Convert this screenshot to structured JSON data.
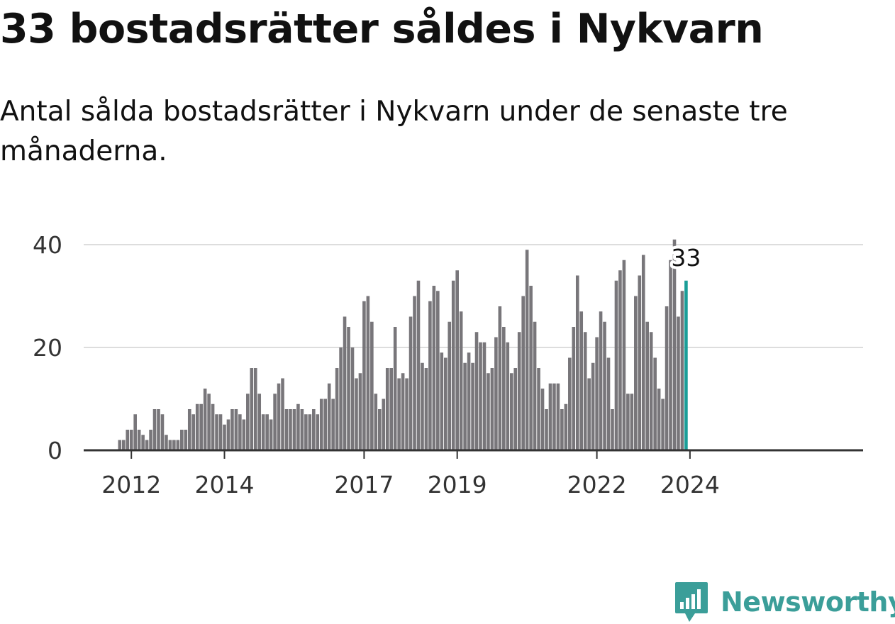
{
  "header": {
    "title": "33 bostadsrätter såldes i Nykvarn",
    "subtitle": "Antal sålda bostadsrätter i Nykvarn under de senaste tre månaderna."
  },
  "brand": {
    "name": "Newsworthy",
    "color": "#3b9e99",
    "icon": "newsworthy-logo-icon"
  },
  "chart_data": {
    "type": "bar",
    "x_start": "2011-10",
    "x_interval": "month",
    "x_tick_labels": [
      "2012",
      "2014",
      "2017",
      "2019",
      "2022",
      "2024"
    ],
    "y_ticks": [
      0,
      20,
      40
    ],
    "ylim": [
      0,
      40
    ],
    "grid": true,
    "colors": {
      "bars": "#78767a",
      "highlight": "#1a9e98",
      "grid": "#dddddd",
      "axis": "#333333"
    },
    "highlight_label": "33",
    "values": [
      2,
      2,
      4,
      4,
      7,
      4,
      3,
      2,
      4,
      8,
      8,
      7,
      3,
      2,
      2,
      2,
      4,
      4,
      8,
      7,
      9,
      9,
      12,
      11,
      9,
      7,
      7,
      5,
      6,
      8,
      8,
      7,
      6,
      11,
      16,
      16,
      11,
      7,
      7,
      6,
      11,
      13,
      14,
      8,
      8,
      8,
      9,
      8,
      7,
      7,
      8,
      7,
      10,
      10,
      13,
      10,
      16,
      20,
      26,
      24,
      20,
      14,
      15,
      29,
      30,
      25,
      11,
      8,
      10,
      16,
      16,
      24,
      14,
      15,
      14,
      26,
      30,
      33,
      17,
      16,
      29,
      32,
      31,
      19,
      18,
      25,
      33,
      35,
      27,
      17,
      19,
      17,
      23,
      21,
      21,
      15,
      16,
      22,
      28,
      24,
      21,
      15,
      16,
      23,
      30,
      39,
      32,
      25,
      16,
      12,
      8,
      13,
      13,
      13,
      8,
      9,
      18,
      24,
      34,
      27,
      23,
      14,
      17,
      22,
      27,
      25,
      18,
      8,
      33,
      35,
      37,
      11,
      11,
      30,
      34,
      38,
      25,
      23,
      18,
      12,
      10,
      28,
      37,
      41,
      26,
      31,
      33
    ]
  }
}
